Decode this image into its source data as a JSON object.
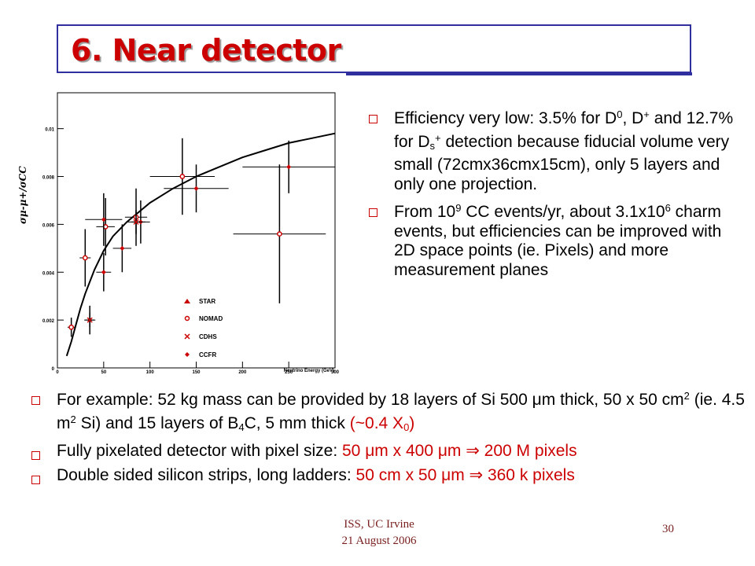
{
  "slide": {
    "title": "6. Near detector",
    "footer_line1": "ISS, UC Irvine",
    "footer_line2": "21 August 2006",
    "page_number": "30",
    "colors": {
      "title": "#cc0000",
      "frame": "#2f2fa0",
      "accent": "#cc0000",
      "footer": "#7a1f1f"
    }
  },
  "plot": {
    "y_label": "σμ-μ+/σCC",
    "x_label": "Neutrino Energy (GeV)",
    "y_ticks": [
      "0",
      "0.002",
      "0.004",
      "0.006",
      "0.008",
      "0.01"
    ],
    "x_ticks": [
      "0",
      "50",
      "100",
      "150",
      "200",
      "250",
      "300"
    ],
    "legend": [
      "STAR",
      "NOMAD",
      "CDHS",
      "CCFR"
    ]
  },
  "chart_data": {
    "type": "scatter",
    "xlim": [
      0,
      300
    ],
    "ylim": [
      0,
      0.0115
    ],
    "x_label": "Neutrino Energy (GeV)",
    "y_label": "σμ-μ+/σCC",
    "series": [
      {
        "name": "NOMAD",
        "marker": "open-circle",
        "points": [
          {
            "x": 15,
            "y": 0.0017,
            "xerr": 4,
            "yerr": 0.0004
          },
          {
            "x": 30,
            "y": 0.0046,
            "xerr": 6,
            "yerr": 0.0012
          },
          {
            "x": 52,
            "y": 0.0059,
            "xerr": 10,
            "yerr": 0.0012
          },
          {
            "x": 85,
            "y": 0.0063,
            "xerr": 12,
            "yerr": 0.0012
          },
          {
            "x": 135,
            "y": 0.008,
            "xerr": 35,
            "yerr": 0.0016
          },
          {
            "x": 240,
            "y": 0.0056,
            "xerr": 50,
            "yerr": 0.0029
          }
        ]
      },
      {
        "name": "CCFR",
        "marker": "filled-diamond",
        "points": [
          {
            "x": 35,
            "y": 0.002,
            "xerr": 6,
            "yerr": 0.0006
          },
          {
            "x": 50,
            "y": 0.004,
            "xerr": 8,
            "yerr": 0.0008
          },
          {
            "x": 50,
            "y": 0.0062,
            "xerr": 20,
            "yerr": 0.0011
          },
          {
            "x": 70,
            "y": 0.005,
            "xerr": 10,
            "yerr": 0.001
          },
          {
            "x": 90,
            "y": 0.0061,
            "xerr": 10,
            "yerr": 0.0009
          },
          {
            "x": 150,
            "y": 0.0075,
            "xerr": 35,
            "yerr": 0.001
          },
          {
            "x": 250,
            "y": 0.0084,
            "xerr": 50,
            "yerr": 0.0011
          }
        ]
      },
      {
        "name": "CDHS",
        "marker": "x",
        "points": [
          {
            "x": 35,
            "y": 0.002,
            "xerr": 5,
            "yerr": 0.0003
          },
          {
            "x": 85,
            "y": 0.0061,
            "xerr": 10,
            "yerr": 0.0005
          }
        ]
      },
      {
        "name": "STAR",
        "marker": "triangle",
        "points": []
      }
    ],
    "curve": {
      "label": "",
      "x": [
        10,
        15,
        20,
        25,
        30,
        40,
        50,
        60,
        75,
        100,
        125,
        150,
        175,
        200,
        225,
        250,
        275,
        300
      ],
      "y": [
        0.0005,
        0.0011,
        0.0018,
        0.0025,
        0.0031,
        0.0041,
        0.0049,
        0.0055,
        0.0061,
        0.0069,
        0.0075,
        0.008,
        0.0084,
        0.0088,
        0.0091,
        0.0094,
        0.0096,
        0.0098
      ]
    }
  },
  "right_bullets": [
    "Efficiency very low: 3.5% for D0, D+ and 12.7% for Ds+ detection because fiducial volume very small (72cmx36cmx15cm), only 5 layers and only one projection.",
    "From 109 CC events/yr, about 3.1x106 charm events, but efficiencies can be improved with 2D space points (ie. Pixels) and more measurement planes"
  ],
  "bottom_bullets": [
    "For example: 52 kg mass can be provided by 18 layers of Si 500 μm thick, 50 x 50 cm2 (ie. 4.5 m2 Si) and 15 layers of B4C, 5 mm thick (~0.4 X0)",
    "Fully pixelated detector with pixel size: 50 μm x 400 μm ⇒ 200 M pixels",
    "Double sided silicon strips, long ladders: 50 cm x 50 μm ⇒ 360 k pixels"
  ]
}
